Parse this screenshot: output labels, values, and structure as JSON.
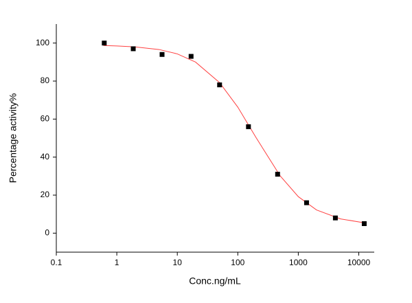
{
  "chart_data": {
    "type": "scatter",
    "x_label": "Conc.ng/mL",
    "y_label": "Percentage activity%",
    "xscale": "log",
    "xlim": [
      0.1,
      18000
    ],
    "ylim": [
      -10,
      110
    ],
    "xticks": [
      0.1,
      1,
      10,
      100,
      1000,
      10000
    ],
    "yticks": [
      0,
      20,
      40,
      60,
      80,
      100
    ],
    "grid": false,
    "series": [
      {
        "type": "line",
        "color": "#ff4040",
        "x": [
          0.6,
          1,
          2,
          5,
          10,
          20,
          50,
          100,
          200,
          500,
          1000,
          2000,
          5000,
          12000
        ],
        "values": [
          98.7,
          98.5,
          98.0,
          96.6,
          94.3,
          90.0,
          79.2,
          66.3,
          50.3,
          30.2,
          19.2,
          12.2,
          7.5,
          5.5
        ]
      },
      {
        "type": "scatter",
        "color": "#000000",
        "x": [
          0.62,
          1.87,
          5.6,
          16.9,
          50,
          150,
          455,
          1370,
          4100,
          12300
        ],
        "values": [
          100,
          97,
          94,
          93,
          78,
          56,
          31,
          16,
          8,
          5
        ]
      }
    ]
  }
}
